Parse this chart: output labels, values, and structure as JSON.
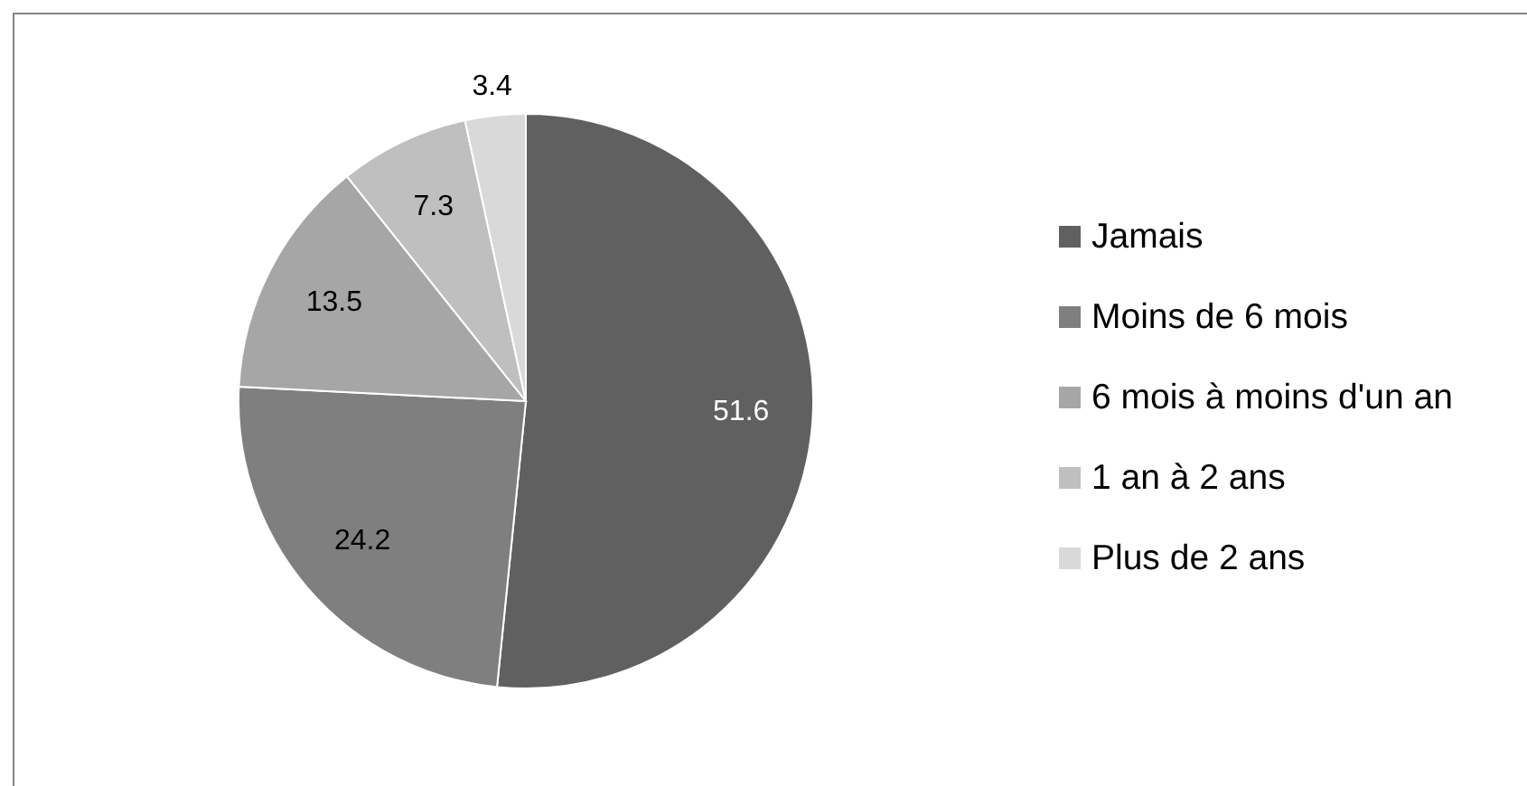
{
  "chart_data": {
    "type": "pie",
    "categories": [
      "Jamais",
      "Moins de 6 mois",
      "6 mois à moins d'un an",
      "1 an à 2 ans",
      "Plus de 2 ans"
    ],
    "values": [
      51.6,
      24.2,
      13.5,
      7.3,
      3.4
    ],
    "colors": [
      "#606060",
      "#7f7f7f",
      "#a6a6a6",
      "#bfbfbf",
      "#d9d9d9"
    ],
    "data_labels": true,
    "legend": "right"
  }
}
